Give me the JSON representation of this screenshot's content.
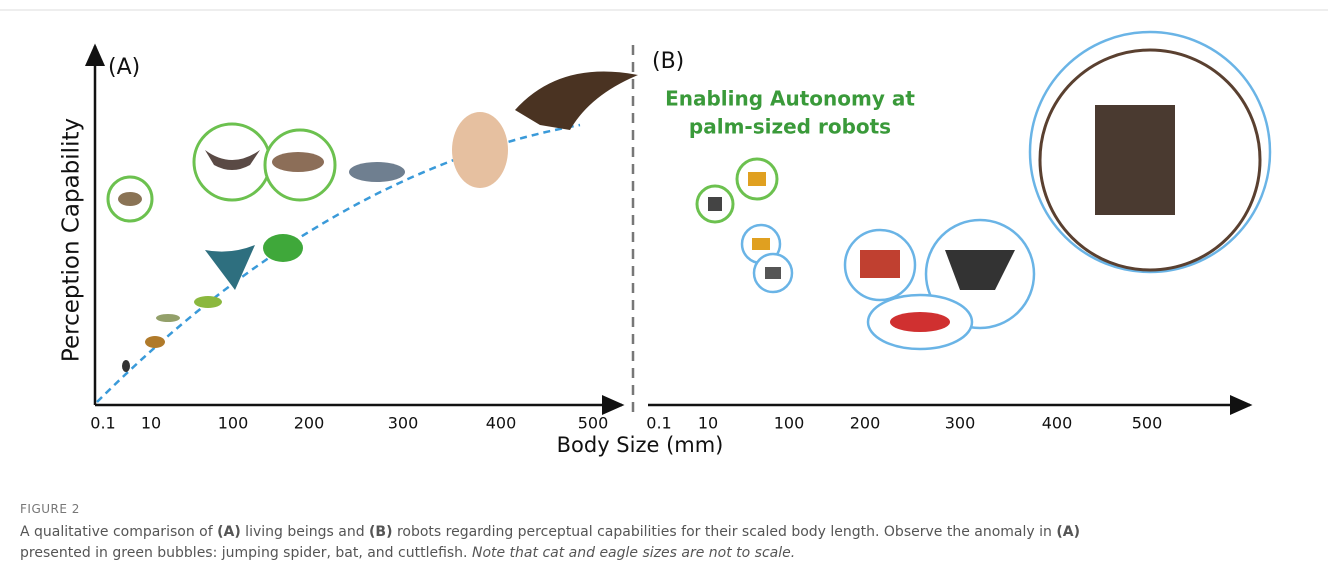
{
  "figure": {
    "panels": [
      {
        "label": "(A)",
        "y_axis_title": "Perception Capability",
        "ticks": [
          "0.1",
          "10",
          "100",
          "200",
          "300",
          "400",
          "500"
        ]
      },
      {
        "label": "(B)",
        "heading": [
          "Enabling Autonomy at",
          "palm-sized robots"
        ],
        "ticks": [
          "0.1",
          "10",
          "100",
          "200",
          "300",
          "400",
          "500"
        ]
      }
    ],
    "x_axis_title": "Body Size (mm)"
  },
  "caption": {
    "label": "FIGURE 2",
    "lines": [
      [
        {
          "text": "A qualitative comparison of ",
          "style": "normal"
        },
        {
          "text": "(A)",
          "style": "bold"
        },
        {
          "text": " living beings and ",
          "style": "normal"
        },
        {
          "text": "(B)",
          "style": "bold"
        },
        {
          "text": " robots regarding perceptual capabilities for their scaled body length. Observe the anomaly in ",
          "style": "normal"
        },
        {
          "text": "(A)",
          "style": "bold"
        }
      ],
      [
        {
          "text": "presented in green bubbles: jumping spider, bat, and cuttlefish. ",
          "style": "normal"
        },
        {
          "text": "Note that cat and eagle sizes are not to scale.",
          "style": "italic"
        }
      ]
    ]
  }
}
